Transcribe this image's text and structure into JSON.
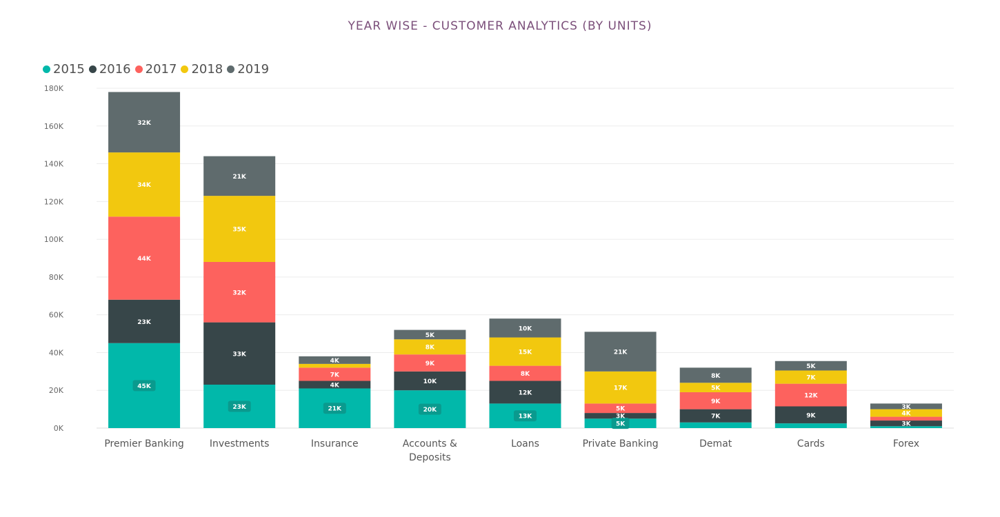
{
  "chart_data": {
    "type": "bar",
    "stacked": true,
    "title": "YEAR WISE - CUSTOMER ANALYTICS (BY UNITS)",
    "legend_position": "top-left",
    "grid": true,
    "ylim": [
      0,
      180000
    ],
    "yticks": [
      0,
      20000,
      40000,
      60000,
      80000,
      100000,
      120000,
      140000,
      160000,
      180000
    ],
    "ytick_labels": [
      "0K",
      "20K",
      "40K",
      "60K",
      "80K",
      "100K",
      "120K",
      "140K",
      "160K",
      "180K"
    ],
    "categories": [
      "Premier Banking",
      "Investments",
      "Insurance",
      "Accounts & Deposits",
      "Loans",
      "Private Banking",
      "Demat",
      "Cards",
      "Forex"
    ],
    "category_lines": [
      [
        "Premier Banking"
      ],
      [
        "Investments"
      ],
      [
        "Insurance"
      ],
      [
        "Accounts &",
        "Deposits"
      ],
      [
        "Loans"
      ],
      [
        "Private Banking"
      ],
      [
        "Demat"
      ],
      [
        "Cards"
      ],
      [
        "Forex"
      ]
    ],
    "series": [
      {
        "name": "2015",
        "color": "#01b8aa",
        "values": [
          45000,
          23000,
          21000,
          20000,
          13000,
          5000,
          3000,
          2500,
          1000
        ],
        "labels": [
          "45K",
          "23K",
          "21K",
          "20K",
          "13K",
          "5K",
          "",
          "",
          ""
        ]
      },
      {
        "name": "2016",
        "color": "#374649",
        "values": [
          23000,
          33000,
          4000,
          10000,
          12000,
          3000,
          7000,
          9000,
          3000
        ],
        "labels": [
          "23K",
          "33K",
          "4K",
          "10K",
          "12K",
          "3K",
          "7K",
          "9K",
          "3K"
        ]
      },
      {
        "name": "2017",
        "color": "#fd625e",
        "values": [
          44000,
          32000,
          7000,
          9000,
          8000,
          5000,
          9000,
          12000,
          2000
        ],
        "labels": [
          "44K",
          "32K",
          "7K",
          "9K",
          "8K",
          "5K",
          "9K",
          "12K",
          ""
        ]
      },
      {
        "name": "2018",
        "color": "#f2c80f",
        "values": [
          34000,
          35000,
          2000,
          8000,
          15000,
          17000,
          5000,
          7000,
          4000
        ],
        "labels": [
          "34K",
          "35K",
          "",
          "8K",
          "15K",
          "17K",
          "5K",
          "7K",
          "4K"
        ]
      },
      {
        "name": "2019",
        "color": "#5f6b6d",
        "values": [
          32000,
          21000,
          4000,
          5000,
          10000,
          21000,
          8000,
          5000,
          3000
        ],
        "labels": [
          "32K",
          "21K",
          "4K",
          "5K",
          "10K",
          "21K",
          "8K",
          "5K",
          "3K"
        ]
      }
    ]
  }
}
